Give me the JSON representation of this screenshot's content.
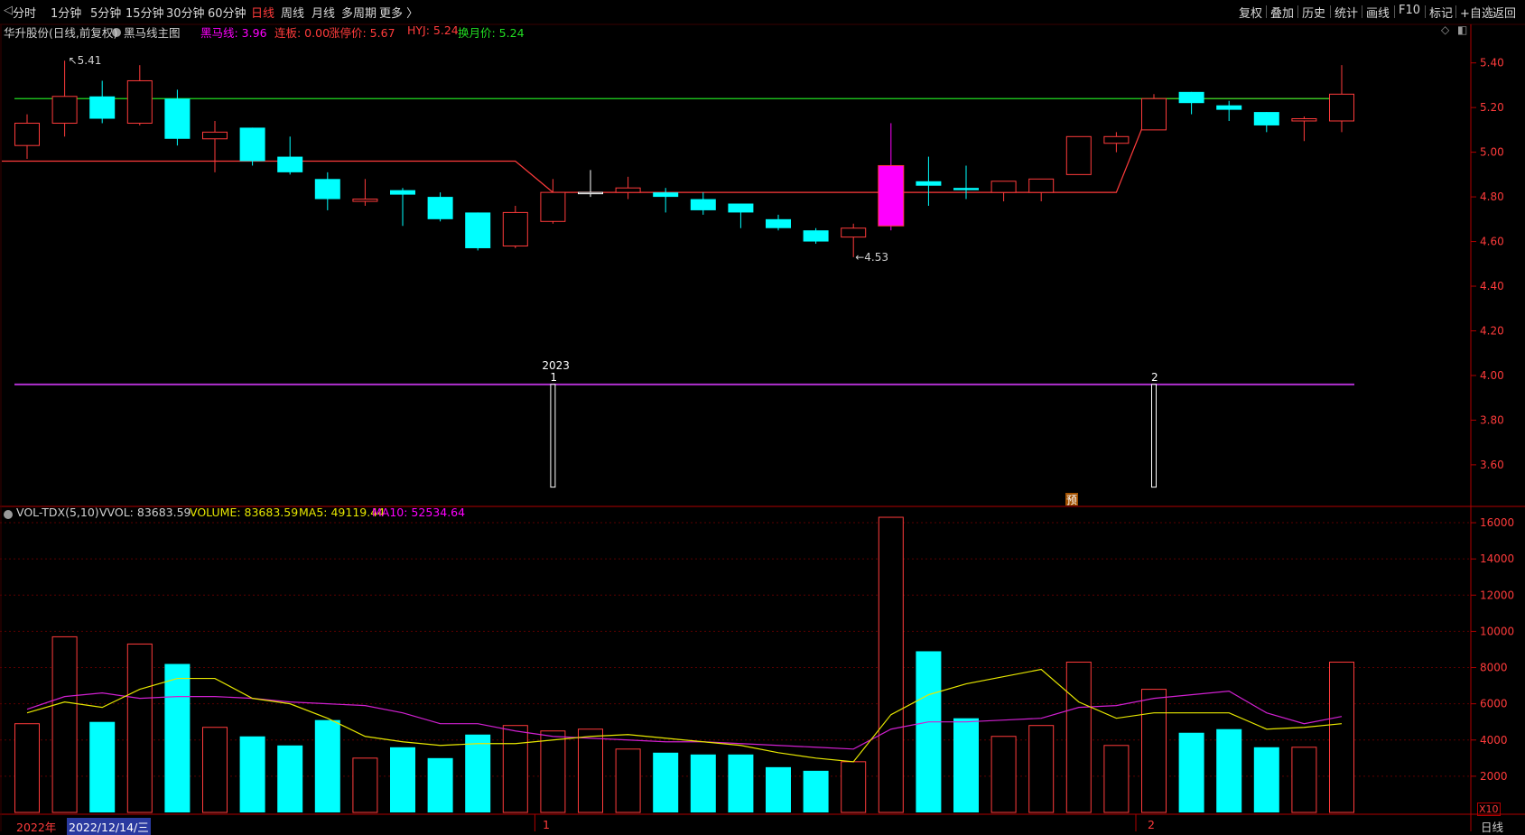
{
  "toolbar": {
    "periods": [
      "分时",
      "1分钟",
      "5分钟",
      "15分钟",
      "30分钟",
      "60分钟",
      "日线",
      "周线",
      "月线",
      "多周期",
      "更多 〉"
    ],
    "active_period": "日线",
    "right_buttons": [
      "复权",
      "叠加",
      "历史",
      "统计",
      "画线",
      "F10",
      "标记",
      "+自选",
      "返回"
    ]
  },
  "header": {
    "stock": "华升股份(日线,前复权)",
    "indicator": "黑马线主图",
    "heima_label": "黑马线: 3.96",
    "lianban_label": "连板: 0.00",
    "zhangting_label": "涨停价: 5.67",
    "hyj_label": "HYJ: 5.24",
    "huanyue_label": "换月价: 5.24"
  },
  "colors": {
    "up": "#ff3b3b",
    "down": "#00ffff",
    "magenta": "#ff00ff",
    "green_line": "#22dd22",
    "purple_line": "#b030d0",
    "ma5": "#e6e600",
    "ma10": "#d020d0",
    "grid": "#5a0000",
    "border": "#b00000"
  },
  "annotations": {
    "high": "5.41",
    "low": "4.53",
    "year": "2023",
    "month1": "1",
    "month2": "2",
    "yu": "预"
  },
  "volume_header": {
    "title": "VOL-TDX(5,10)",
    "vvol": "VVOL: 83683.59",
    "volume": "VOLUME: 83683.59",
    "ma5": "MA5: 49119.44",
    "ma10": "MA10: 52534.64"
  },
  "bottom": {
    "year": "2022年",
    "date": "2022/12/14/三",
    "m1": "1",
    "m2": "2",
    "period": "日线",
    "x10": "X10"
  },
  "chart_data": [
    {
      "type": "candlestick",
      "title": "黑马线主图",
      "ylim": [
        3.45,
        5.52
      ],
      "yticks": [
        3.6,
        3.8,
        4.0,
        4.2,
        4.4,
        4.6,
        4.8,
        5.0,
        5.2,
        5.4
      ],
      "candles": [
        {
          "o": 5.03,
          "c": 5.13,
          "h": 5.17,
          "l": 4.97
        },
        {
          "o": 5.13,
          "c": 5.25,
          "h": 5.41,
          "l": 5.07
        },
        {
          "o": 5.25,
          "c": 5.15,
          "h": 5.32,
          "l": 5.13
        },
        {
          "o": 5.13,
          "c": 5.32,
          "h": 5.39,
          "l": 5.12
        },
        {
          "o": 5.24,
          "c": 5.06,
          "h": 5.28,
          "l": 5.03
        },
        {
          "o": 5.06,
          "c": 5.09,
          "h": 5.14,
          "l": 4.91
        },
        {
          "o": 5.11,
          "c": 4.96,
          "h": 5.11,
          "l": 4.94
        },
        {
          "o": 4.98,
          "c": 4.91,
          "h": 5.07,
          "l": 4.9
        },
        {
          "o": 4.88,
          "c": 4.79,
          "h": 4.91,
          "l": 4.74
        },
        {
          "o": 4.78,
          "c": 4.79,
          "h": 4.88,
          "l": 4.76
        },
        {
          "o": 4.83,
          "c": 4.81,
          "h": 4.84,
          "l": 4.67
        },
        {
          "o": 4.8,
          "c": 4.7,
          "h": 4.82,
          "l": 4.69
        },
        {
          "o": 4.73,
          "c": 4.57,
          "h": 4.73,
          "l": 4.56
        },
        {
          "o": 4.58,
          "c": 4.73,
          "h": 4.76,
          "l": 4.57
        },
        {
          "o": 4.69,
          "c": 4.82,
          "h": 4.88,
          "l": 4.68
        },
        {
          "o": 4.82,
          "c": 4.82,
          "h": 4.92,
          "l": 4.8
        },
        {
          "o": 4.82,
          "c": 4.84,
          "h": 4.89,
          "l": 4.79
        },
        {
          "o": 4.82,
          "c": 4.8,
          "h": 4.84,
          "l": 4.73
        },
        {
          "o": 4.79,
          "c": 4.74,
          "h": 4.82,
          "l": 4.72
        },
        {
          "o": 4.77,
          "c": 4.73,
          "h": 4.77,
          "l": 4.66
        },
        {
          "o": 4.7,
          "c": 4.66,
          "h": 4.72,
          "l": 4.65
        },
        {
          "o": 4.65,
          "c": 4.6,
          "h": 4.66,
          "l": 4.59
        },
        {
          "o": 4.62,
          "c": 4.66,
          "h": 4.68,
          "l": 4.53
        },
        {
          "o": 4.67,
          "c": 4.94,
          "h": 5.13,
          "l": 4.65
        },
        {
          "o": 4.87,
          "c": 4.85,
          "h": 4.98,
          "l": 4.76
        },
        {
          "o": 4.84,
          "c": 4.83,
          "h": 4.94,
          "l": 4.79
        },
        {
          "o": 4.82,
          "c": 4.87,
          "h": 4.87,
          "l": 4.78
        },
        {
          "o": 4.82,
          "c": 4.88,
          "h": 4.88,
          "l": 4.78
        },
        {
          "o": 4.9,
          "c": 5.07,
          "h": 5.07,
          "l": 4.9
        },
        {
          "o": 5.04,
          "c": 5.07,
          "h": 5.09,
          "l": 5.0
        },
        {
          "o": 5.1,
          "c": 5.24,
          "h": 5.26,
          "l": 5.1
        },
        {
          "o": 5.27,
          "c": 5.22,
          "h": 5.27,
          "l": 5.17
        },
        {
          "o": 5.21,
          "c": 5.19,
          "h": 5.23,
          "l": 5.14
        },
        {
          "o": 5.18,
          "c": 5.12,
          "h": 5.18,
          "l": 5.09
        },
        {
          "o": 5.14,
          "c": 5.15,
          "h": 5.16,
          "l": 5.05
        },
        {
          "o": 5.14,
          "c": 5.26,
          "h": 5.39,
          "l": 5.09
        }
      ],
      "hyj_line": 5.24,
      "heima_line": 3.96,
      "step_line": [
        {
          "i": 0,
          "v": 4.96
        },
        {
          "i": 13,
          "v": 4.96
        },
        {
          "i": 14,
          "v": 4.82
        },
        {
          "i": 29,
          "v": 4.82
        },
        {
          "i": 30,
          "v": 5.24
        }
      ],
      "markers": [
        {
          "i": 14,
          "label": "1"
        },
        {
          "i": 30,
          "label": "2"
        }
      ]
    },
    {
      "type": "bar",
      "title": "VOL-TDX(5,10)",
      "ylim": [
        0,
        16800
      ],
      "yticks": [
        2000,
        4000,
        6000,
        8000,
        10000,
        12000,
        14000,
        16000
      ],
      "values": [
        4900,
        9700,
        5000,
        9300,
        8200,
        4700,
        4200,
        3700,
        5100,
        3000,
        3600,
        3000,
        4300,
        4800,
        4500,
        4600,
        3500,
        3300,
        3200,
        3200,
        2500,
        2300,
        2800,
        16300,
        8900,
        5200,
        4200,
        4800,
        8300,
        3700,
        6800,
        4400,
        4600,
        3600,
        3600,
        8300
      ],
      "up": [
        true,
        true,
        false,
        true,
        false,
        true,
        false,
        false,
        false,
        true,
        false,
        false,
        false,
        true,
        true,
        true,
        true,
        false,
        false,
        false,
        false,
        false,
        true,
        true,
        false,
        false,
        true,
        true,
        true,
        true,
        true,
        false,
        false,
        false,
        true,
        true
      ],
      "ma5": [
        5500,
        6100,
        5800,
        6800,
        7400,
        7400,
        6300,
        6000,
        5200,
        4200,
        3900,
        3700,
        3800,
        3800,
        4000,
        4200,
        4300,
        4100,
        3900,
        3700,
        3300,
        3000,
        2800,
        5400,
        6500,
        7100,
        7500,
        7900,
        6100,
        5200,
        5500,
        5500,
        5500,
        4600,
        4700,
        4900
      ],
      "ma10": [
        5700,
        6400,
        6600,
        6300,
        6400,
        6400,
        6300,
        6100,
        6000,
        5900,
        5500,
        4900,
        4900,
        4500,
        4200,
        4100,
        4000,
        3900,
        3900,
        3800,
        3700,
        3600,
        3500,
        4600,
        5000,
        5000,
        5100,
        5200,
        5800,
        5900,
        6300,
        6500,
        6700,
        5500,
        4900,
        5300
      ]
    }
  ]
}
